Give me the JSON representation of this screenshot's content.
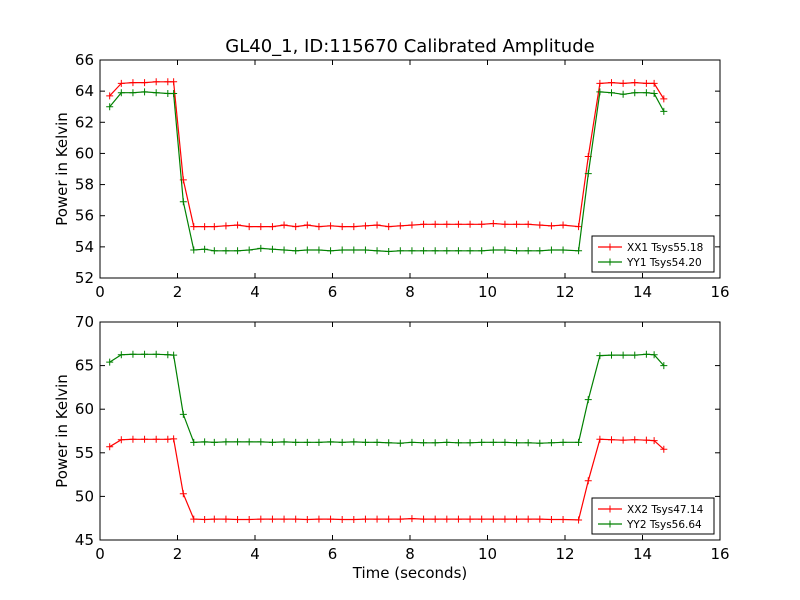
{
  "figure": {
    "title": "GL40_1, ID:115670 Calibrated Amplitude",
    "colors": {
      "XX": "#ff0000",
      "YY": "#008000",
      "frame": "#000000",
      "background": "#ffffff"
    }
  },
  "chart_data": [
    {
      "type": "line",
      "title": "GL40_1, ID:115670 Calibrated Amplitude",
      "xlabel": "",
      "ylabel": "Power in Kelvin",
      "xlim": [
        0,
        16
      ],
      "ylim": [
        52,
        66
      ],
      "xticks": [
        0,
        2,
        4,
        6,
        8,
        10,
        12,
        14,
        16
      ],
      "yticks": [
        52,
        54,
        56,
        58,
        60,
        62,
        64,
        66
      ],
      "grid": false,
      "legend_position": "lower-right",
      "x": [
        0.25,
        0.55,
        0.85,
        1.15,
        1.45,
        1.75,
        1.9,
        2.15,
        2.42,
        2.7,
        2.95,
        3.25,
        3.55,
        3.85,
        4.15,
        4.45,
        4.75,
        5.05,
        5.35,
        5.65,
        5.95,
        6.25,
        6.55,
        6.85,
        7.15,
        7.45,
        7.75,
        8.05,
        8.35,
        8.65,
        8.95,
        9.25,
        9.55,
        9.85,
        10.15,
        10.45,
        10.75,
        11.05,
        11.35,
        11.65,
        11.95,
        12.35,
        12.6,
        12.9,
        13.2,
        13.5,
        13.8,
        14.1,
        14.3,
        14.55
      ],
      "series": [
        {
          "name": "XX1 Tsys55.18",
          "color": "#ff0000",
          "marker": "+",
          "values": [
            63.7,
            64.5,
            64.55,
            64.55,
            64.6,
            64.6,
            64.6,
            58.3,
            55.3,
            55.3,
            55.3,
            55.35,
            55.4,
            55.3,
            55.3,
            55.3,
            55.4,
            55.3,
            55.4,
            55.3,
            55.35,
            55.3,
            55.3,
            55.35,
            55.4,
            55.3,
            55.35,
            55.4,
            55.45,
            55.45,
            55.45,
            55.45,
            55.45,
            55.45,
            55.5,
            55.45,
            55.45,
            55.45,
            55.4,
            55.35,
            55.4,
            55.3,
            59.8,
            64.5,
            64.55,
            64.5,
            64.55,
            64.5,
            64.5,
            63.5
          ]
        },
        {
          "name": "YY1 Tsys54.20",
          "color": "#008000",
          "marker": "+",
          "values": [
            63.0,
            63.9,
            63.9,
            63.95,
            63.9,
            63.85,
            63.85,
            56.9,
            53.8,
            53.85,
            53.75,
            53.75,
            53.75,
            53.8,
            53.9,
            53.85,
            53.8,
            53.75,
            53.8,
            53.8,
            53.75,
            53.8,
            53.8,
            53.8,
            53.75,
            53.7,
            53.75,
            53.75,
            53.75,
            53.75,
            53.75,
            53.75,
            53.75,
            53.75,
            53.8,
            53.8,
            53.75,
            53.75,
            53.75,
            53.8,
            53.8,
            53.75,
            58.7,
            63.95,
            63.9,
            63.8,
            63.9,
            63.9,
            63.85,
            62.7
          ]
        }
      ]
    },
    {
      "type": "line",
      "title": "",
      "xlabel": "Time (seconds)",
      "ylabel": "Power in Kelvin",
      "xlim": [
        0,
        16
      ],
      "ylim": [
        45,
        70
      ],
      "xticks": [
        0,
        2,
        4,
        6,
        8,
        10,
        12,
        14,
        16
      ],
      "yticks": [
        45,
        50,
        55,
        60,
        65,
        70
      ],
      "grid": false,
      "legend_position": "lower-right",
      "x": [
        0.25,
        0.55,
        0.85,
        1.15,
        1.45,
        1.75,
        1.9,
        2.15,
        2.42,
        2.7,
        2.95,
        3.25,
        3.55,
        3.85,
        4.15,
        4.45,
        4.75,
        5.05,
        5.35,
        5.65,
        5.95,
        6.25,
        6.55,
        6.85,
        7.15,
        7.45,
        7.75,
        8.05,
        8.35,
        8.65,
        8.95,
        9.25,
        9.55,
        9.85,
        10.15,
        10.45,
        10.75,
        11.05,
        11.35,
        11.65,
        11.95,
        12.35,
        12.6,
        12.9,
        13.2,
        13.5,
        13.8,
        14.1,
        14.3,
        14.55
      ],
      "series": [
        {
          "name": "XX2 Tsys47.14",
          "color": "#ff0000",
          "marker": "+",
          "values": [
            55.7,
            56.5,
            56.55,
            56.55,
            56.55,
            56.55,
            56.6,
            50.3,
            47.4,
            47.35,
            47.4,
            47.4,
            47.35,
            47.35,
            47.4,
            47.4,
            47.4,
            47.4,
            47.35,
            47.4,
            47.4,
            47.35,
            47.35,
            47.4,
            47.4,
            47.4,
            47.4,
            47.45,
            47.4,
            47.4,
            47.4,
            47.4,
            47.4,
            47.4,
            47.4,
            47.4,
            47.4,
            47.4,
            47.4,
            47.35,
            47.35,
            47.3,
            51.8,
            56.55,
            56.5,
            56.45,
            56.5,
            56.45,
            56.4,
            55.4
          ]
        },
        {
          "name": "YY2 Tsys56.64",
          "color": "#008000",
          "marker": "+",
          "values": [
            65.4,
            66.25,
            66.3,
            66.3,
            66.3,
            66.25,
            66.2,
            59.4,
            56.2,
            56.25,
            56.2,
            56.25,
            56.25,
            56.25,
            56.25,
            56.2,
            56.25,
            56.2,
            56.2,
            56.2,
            56.25,
            56.2,
            56.25,
            56.2,
            56.2,
            56.15,
            56.1,
            56.2,
            56.15,
            56.15,
            56.2,
            56.15,
            56.15,
            56.2,
            56.2,
            56.2,
            56.15,
            56.15,
            56.1,
            56.15,
            56.2,
            56.2,
            61.1,
            66.15,
            66.2,
            66.2,
            66.2,
            66.3,
            66.25,
            65.0
          ]
        }
      ]
    }
  ]
}
